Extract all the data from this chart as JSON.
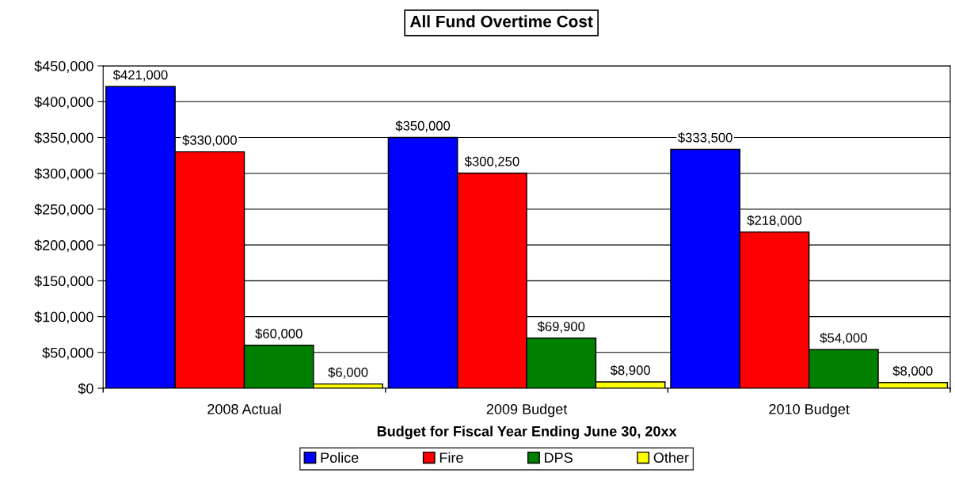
{
  "chart_data": {
    "type": "bar",
    "title": "All Fund Overtime Cost",
    "xlabel": "Budget for Fiscal Year Ending June 30, 20xx",
    "categories": [
      "2008 Actual",
      "2009 Budget",
      "2010 Budget"
    ],
    "series": [
      {
        "name": "Police",
        "color": "#0000ff",
        "values": [
          421000,
          350000,
          333500
        ],
        "value_labels": [
          "$421,000",
          "$350,000",
          "$333,500"
        ]
      },
      {
        "name": "Fire",
        "color": "#ff0000",
        "values": [
          330000,
          300250,
          218000
        ],
        "value_labels": [
          "$330,000",
          "$300,250",
          "$218,000"
        ]
      },
      {
        "name": "DPS",
        "color": "#008000",
        "values": [
          60000,
          69900,
          54000
        ],
        "value_labels": [
          "$60,000",
          "$69,900",
          "$54,000"
        ]
      },
      {
        "name": "Other",
        "color": "#ffff00",
        "values": [
          6000,
          8900,
          8000
        ],
        "value_labels": [
          "$6,000",
          "$8,900",
          "$8,000"
        ]
      }
    ],
    "ylim": [
      0,
      450000
    ],
    "yticks": [
      {
        "value": 0,
        "label": "$0"
      },
      {
        "value": 50000,
        "label": "$50,000"
      },
      {
        "value": 100000,
        "label": "$100,000"
      },
      {
        "value": 150000,
        "label": "$150,000"
      },
      {
        "value": 200000,
        "label": "$200,000"
      },
      {
        "value": 250000,
        "label": "$250,000"
      },
      {
        "value": 300000,
        "label": "$300,000"
      },
      {
        "value": 350000,
        "label": "$350,000"
      },
      {
        "value": 400000,
        "label": "$400,000"
      },
      {
        "value": 450000,
        "label": "$450,000"
      }
    ],
    "grid": "y",
    "legend": "bottom"
  }
}
